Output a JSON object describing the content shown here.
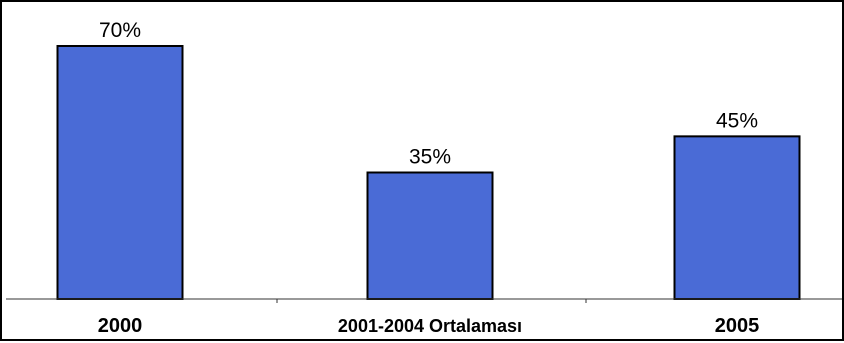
{
  "chart_data": {
    "type": "bar",
    "categories": [
      "2000",
      "2001-2004 Ortalaması",
      "2005"
    ],
    "values": [
      70,
      35,
      45
    ],
    "value_labels": [
      "70%",
      "35%",
      "45%"
    ],
    "title": "",
    "xlabel": "",
    "ylabel": "",
    "ylim": [
      0,
      70
    ],
    "grid": false,
    "legend": "none",
    "bar_color": "#4a6bd6"
  }
}
